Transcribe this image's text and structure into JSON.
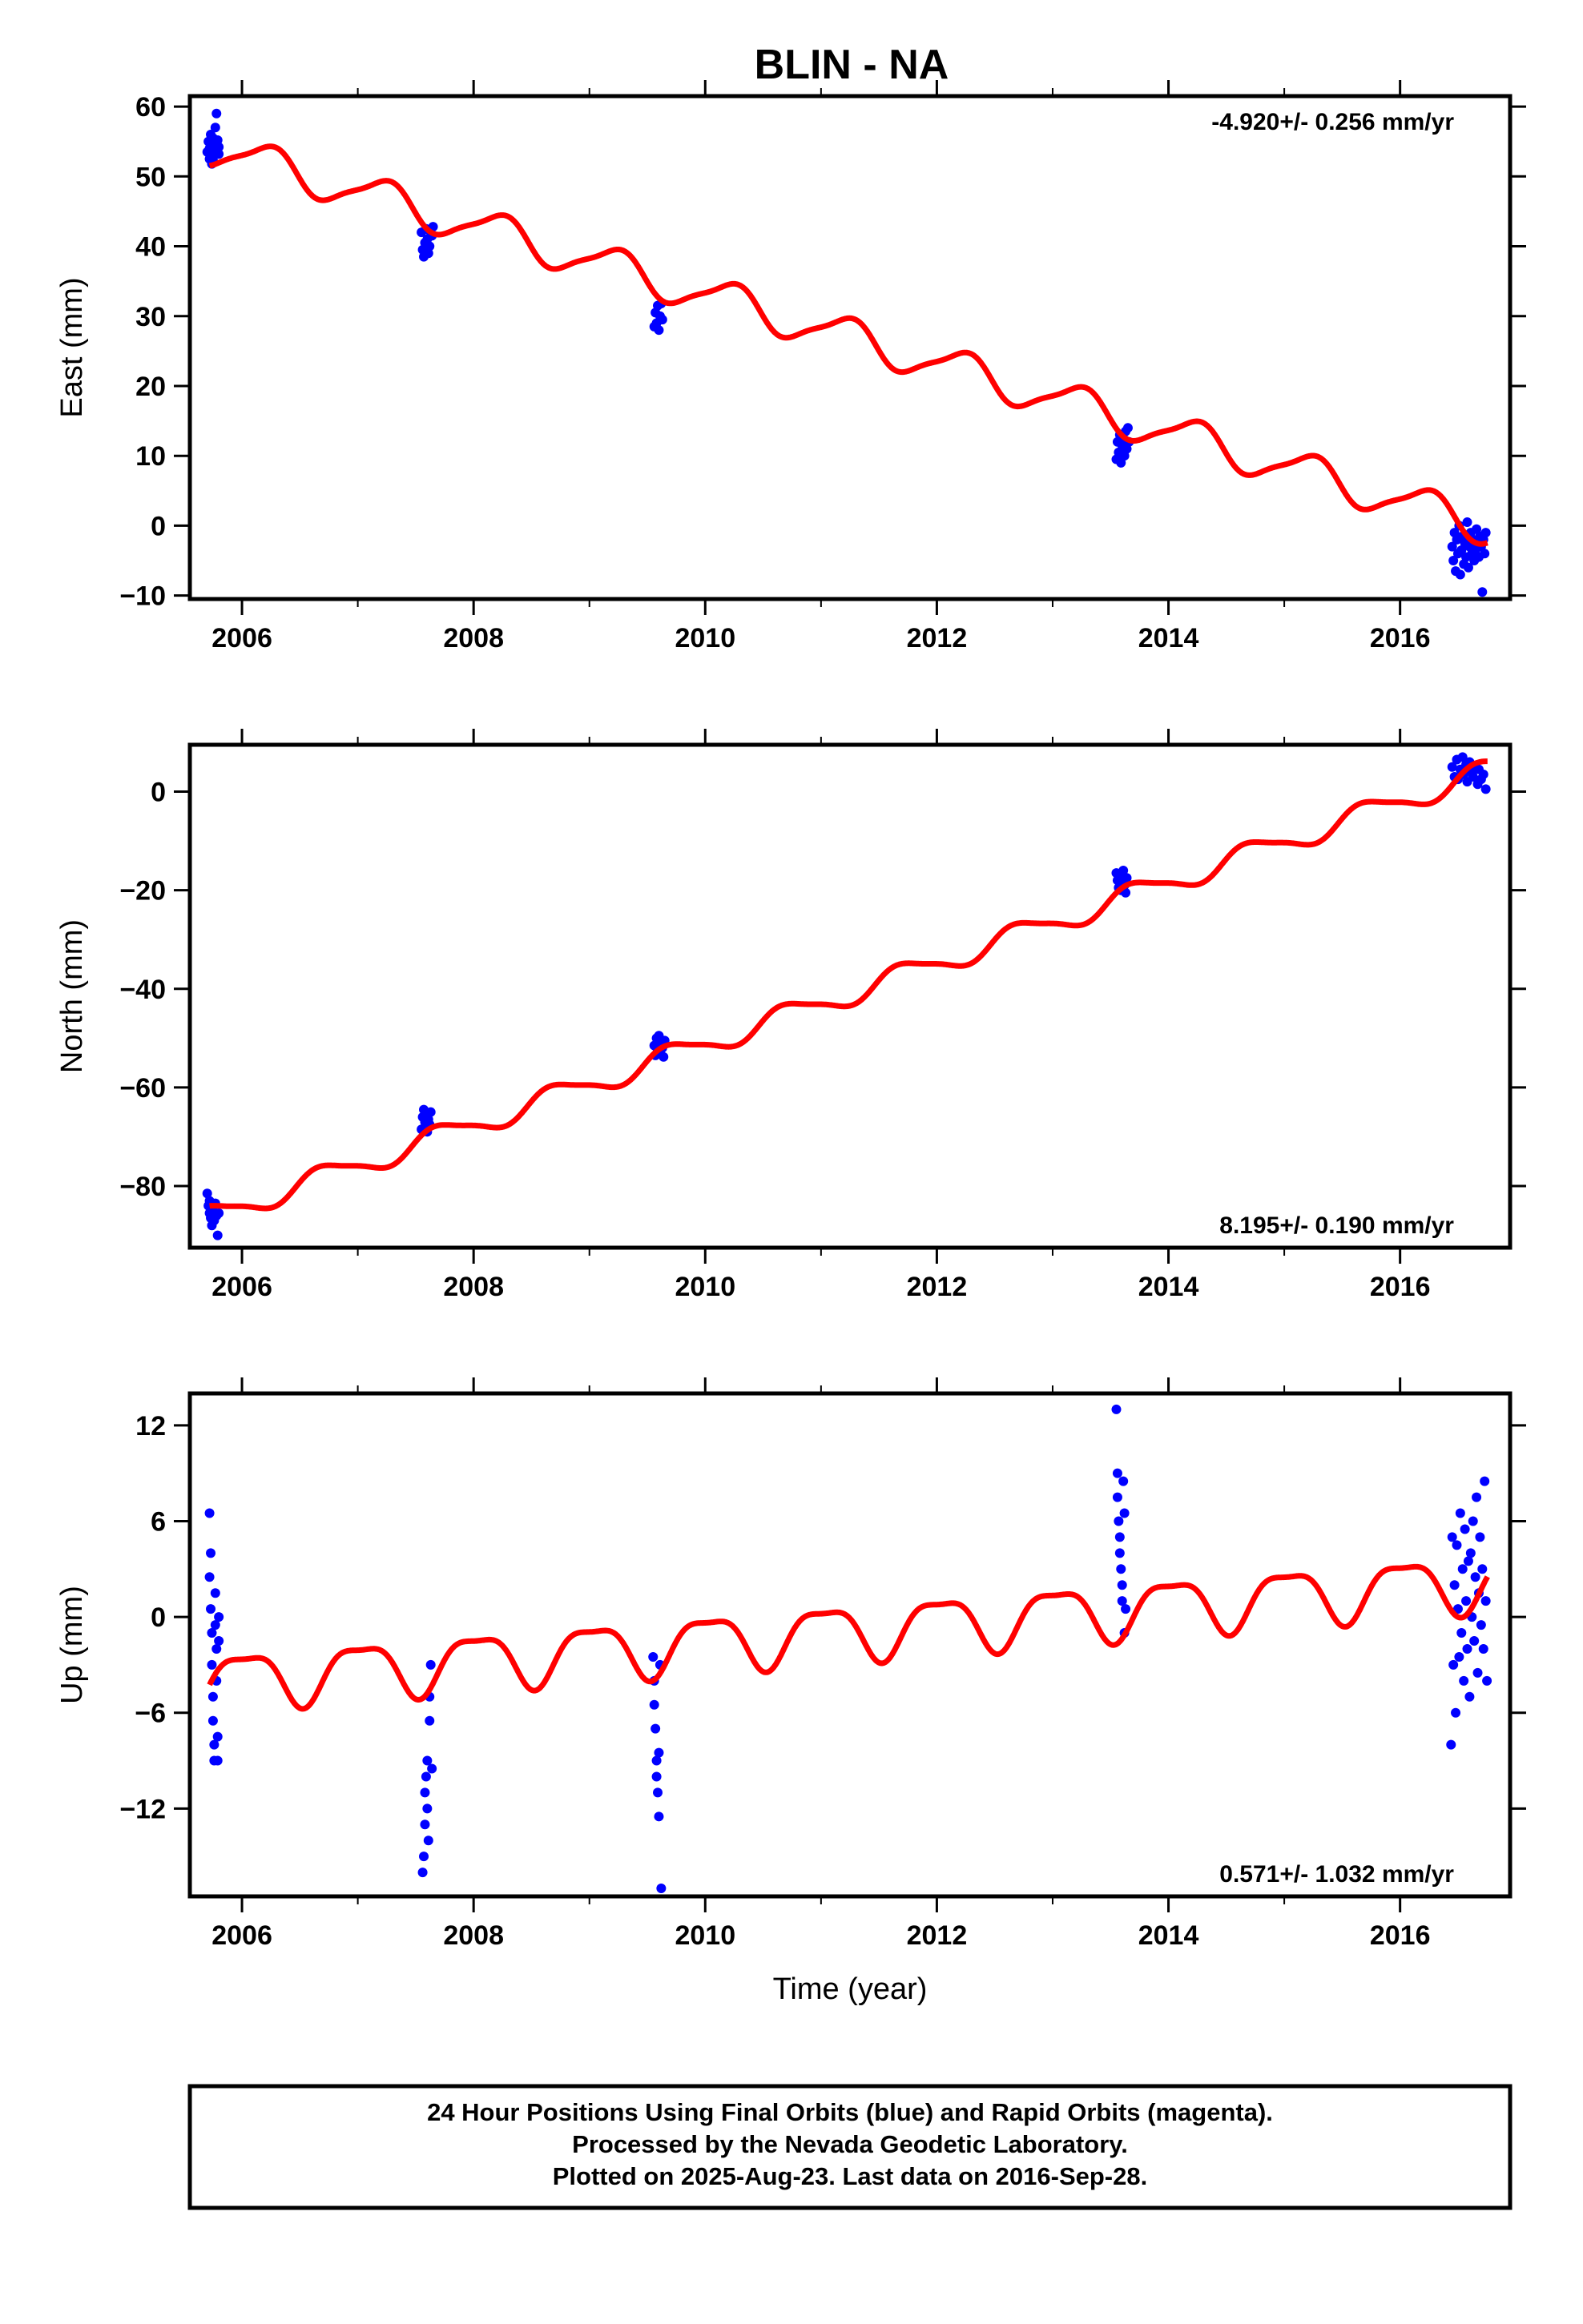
{
  "title": "BLIN - NA",
  "footer": {
    "lines": [
      "24 Hour Positions Using Final Orbits (blue) and Rapid Orbits (magenta).",
      "Processed by the Nevada Geodetic Laboratory.",
      "Plotted on 2025-Aug-23. Last data on 2016-Sep-28."
    ]
  },
  "colors": {
    "data": "#0000ff",
    "model": "#ff0000",
    "axis": "#000000"
  },
  "chart_data": [
    {
      "type": "scatter",
      "ylabel": "East (mm)",
      "xlabel": "",
      "rate": "-4.920+/- 0.256 mm/yr",
      "rate_position": "top-right",
      "xlim": [
        2005.55,
        2016.95
      ],
      "ylim": [
        -10.5,
        61.5
      ],
      "xticks": [
        2006,
        2008,
        2010,
        2012,
        2014,
        2016
      ],
      "yticks": [
        60,
        50,
        40,
        30,
        20,
        10,
        0,
        -10
      ],
      "yticklabels": [
        "60",
        "50",
        "40",
        "30",
        "20",
        "10",
        "0",
        "−10"
      ],
      "model": {
        "trend_start": 54.0,
        "rate": -4.92,
        "annual_amp": 2.6,
        "annual_phase_deg": 10,
        "semiannual_amp": 0.6,
        "semiannual_phase_deg": 200
      },
      "series": [
        {
          "x": [
            2005.7,
            2005.71,
            2005.72,
            2005.72,
            2005.73,
            2005.74,
            2005.74,
            2005.75,
            2005.75,
            2005.76,
            2005.77,
            2005.78,
            2005.78,
            2005.79,
            2005.8,
            2005.8
          ],
          "y": [
            53.5,
            55.0,
            52.5,
            54.0,
            56.0,
            53.0,
            51.8,
            55.5,
            52.3,
            54.8,
            57.0,
            53.8,
            59.0,
            55.2,
            53.2,
            54.2
          ]
        },
        {
          "x": [
            2007.55,
            2007.56,
            2007.57,
            2007.58,
            2007.59,
            2007.6,
            2007.61,
            2007.62,
            2007.63,
            2007.64,
            2007.65
          ],
          "y": [
            42.0,
            39.5,
            38.5,
            40.5,
            42.5,
            41.0,
            39.0,
            40.0,
            42.0,
            41.5,
            42.8
          ]
        },
        {
          "x": [
            2009.56,
            2009.57,
            2009.58,
            2009.59,
            2009.6,
            2009.61,
            2009.62,
            2009.63
          ],
          "y": [
            28.5,
            30.5,
            29.0,
            31.5,
            28.0,
            30.0,
            31.8,
            29.5
          ]
        },
        {
          "x": [
            2013.55,
            2013.56,
            2013.57,
            2013.58,
            2013.59,
            2013.6,
            2013.61,
            2013.62,
            2013.63,
            2013.64,
            2013.65,
            2013.66
          ],
          "y": [
            9.5,
            12.0,
            10.5,
            13.0,
            9.0,
            11.5,
            12.5,
            10.0,
            13.5,
            11.0,
            14.0,
            12.0
          ]
        },
        {
          "x": [
            2016.45,
            2016.46,
            2016.47,
            2016.48,
            2016.49,
            2016.5,
            2016.51,
            2016.52,
            2016.53,
            2016.54,
            2016.55,
            2016.56,
            2016.57,
            2016.58,
            2016.59,
            2016.6,
            2016.61,
            2016.62,
            2016.63,
            2016.64,
            2016.65,
            2016.66,
            2016.67,
            2016.68,
            2016.69,
            2016.7,
            2016.71,
            2016.72,
            2016.73,
            2016.74
          ],
          "y": [
            -3.0,
            -5.0,
            -1.0,
            -6.5,
            -2.0,
            -4.0,
            0.0,
            -7.0,
            -3.5,
            -1.5,
            -5.5,
            -2.5,
            -4.5,
            0.5,
            -6.0,
            -3.0,
            -1.0,
            -4.0,
            -2.0,
            -5.0,
            -3.5,
            -0.5,
            -2.8,
            -4.5,
            -1.5,
            -3.0,
            -9.5,
            -2.0,
            -4.0,
            -1.0
          ]
        }
      ]
    },
    {
      "type": "scatter",
      "ylabel": "North (mm)",
      "xlabel": "",
      "rate": "8.195+/- 0.190 mm/yr",
      "rate_position": "bottom-right",
      "xlim": [
        2005.55,
        2016.95
      ],
      "ylim": [
        -92.5,
        9.5
      ],
      "xticks": [
        2006,
        2008,
        2010,
        2012,
        2014,
        2016
      ],
      "yticks": [
        0,
        -20,
        -40,
        -60,
        -80
      ],
      "yticklabels": [
        "0",
        "−20",
        "−40",
        "−60",
        "−80"
      ],
      "model": {
        "trend_start": -86.0,
        "rate": 8.195,
        "annual_amp": 2.3,
        "annual_phase_deg": 190,
        "semiannual_amp": 0.5,
        "semiannual_phase_deg": 30
      },
      "series": [
        {
          "x": [
            2005.7,
            2005.71,
            2005.72,
            2005.72,
            2005.73,
            2005.74,
            2005.74,
            2005.75,
            2005.76,
            2005.77,
            2005.78,
            2005.79,
            2005.8
          ],
          "y": [
            -81.5,
            -84.0,
            -85.5,
            -83.0,
            -86.5,
            -88.0,
            -84.5,
            -85.0,
            -87.0,
            -83.5,
            -86.0,
            -90.0,
            -85.5
          ]
        },
        {
          "x": [
            2007.55,
            2007.56,
            2007.57,
            2007.58,
            2007.59,
            2007.6,
            2007.61,
            2007.62,
            2007.63
          ],
          "y": [
            -68.5,
            -66.0,
            -64.5,
            -67.0,
            -65.5,
            -69.0,
            -66.5,
            -67.5,
            -65.0
          ]
        },
        {
          "x": [
            2009.56,
            2009.57,
            2009.58,
            2009.59,
            2009.6,
            2009.61,
            2009.62,
            2009.63,
            2009.64,
            2009.65
          ],
          "y": [
            -51.5,
            -53.5,
            -50.0,
            -52.5,
            -49.5,
            -53.0,
            -51.0,
            -52.0,
            -53.8,
            -50.5
          ]
        },
        {
          "x": [
            2013.55,
            2013.56,
            2013.57,
            2013.58,
            2013.59,
            2013.6,
            2013.61,
            2013.62,
            2013.63,
            2013.64
          ],
          "y": [
            -16.5,
            -18.0,
            -19.5,
            -17.0,
            -20.0,
            -18.5,
            -16.0,
            -19.0,
            -20.5,
            -17.5
          ]
        },
        {
          "x": [
            2016.45,
            2016.47,
            2016.49,
            2016.5,
            2016.52,
            2016.54,
            2016.55,
            2016.57,
            2016.58,
            2016.6,
            2016.62,
            2016.63,
            2016.65,
            2016.67,
            2016.68,
            2016.7,
            2016.72,
            2016.74
          ],
          "y": [
            5.0,
            3.0,
            6.5,
            2.5,
            4.5,
            7.0,
            3.5,
            5.5,
            2.0,
            6.0,
            4.0,
            3.0,
            5.0,
            1.5,
            4.5,
            2.5,
            3.5,
            0.5
          ]
        }
      ]
    },
    {
      "type": "scatter",
      "ylabel": "Up (mm)",
      "xlabel": "Time (year)",
      "rate": "0.571+/- 1.032 mm/yr",
      "rate_position": "bottom-right",
      "xlim": [
        2005.55,
        2016.95
      ],
      "ylim": [
        -17.5,
        14.0
      ],
      "xticks": [
        2006,
        2008,
        2010,
        2012,
        2014,
        2016
      ],
      "yticks": [
        12,
        6,
        0,
        -6,
        -12
      ],
      "yticklabels": [
        "12",
        "6",
        "0",
        "−6",
        "−12"
      ],
      "model": {
        "trend_start": -4.0,
        "rate": 0.571,
        "annual_amp": 1.7,
        "annual_phase_deg": 80,
        "semiannual_amp": 0.5,
        "semiannual_phase_deg": 250
      },
      "series": [
        {
          "x": [
            2005.72,
            2005.72,
            2005.73,
            2005.73,
            2005.74,
            2005.74,
            2005.75,
            2005.75,
            2005.76,
            2005.76,
            2005.77,
            2005.77,
            2005.78,
            2005.78,
            2005.79,
            2005.79,
            2005.8,
            2005.8
          ],
          "y": [
            6.5,
            2.5,
            4.0,
            0.5,
            -1.0,
            -3.0,
            -5.0,
            -6.5,
            -8.0,
            -9.0,
            1.5,
            -0.5,
            -2.0,
            -4.0,
            -7.5,
            -9.0,
            -1.5,
            0.0
          ]
        },
        {
          "x": [
            2007.56,
            2007.57,
            2007.58,
            2007.58,
            2007.59,
            2007.6,
            2007.6,
            2007.61,
            2007.62,
            2007.62,
            2007.63,
            2007.64
          ],
          "y": [
            -16.0,
            -15.0,
            -13.0,
            -11.0,
            -10.0,
            -9.0,
            -12.0,
            -14.0,
            -6.5,
            -5.0,
            -3.0,
            -9.5
          ]
        },
        {
          "x": [
            2009.55,
            2009.56,
            2009.56,
            2009.57,
            2009.58,
            2009.58,
            2009.59,
            2009.6,
            2009.6,
            2009.61,
            2009.62
          ],
          "y": [
            -2.5,
            -4.0,
            -5.5,
            -7.0,
            -9.0,
            -10.0,
            -11.0,
            -12.5,
            -8.5,
            -3.0,
            -17.0
          ]
        },
        {
          "x": [
            2013.55,
            2013.56,
            2013.56,
            2013.57,
            2013.58,
            2013.58,
            2013.59,
            2013.6,
            2013.6,
            2013.61,
            2013.62,
            2013.62,
            2013.63
          ],
          "y": [
            13.0,
            9.0,
            7.5,
            6.0,
            5.0,
            4.0,
            3.0,
            2.0,
            1.0,
            8.5,
            6.5,
            -1.0,
            0.5
          ]
        },
        {
          "x": [
            2016.44,
            2016.45,
            2016.46,
            2016.47,
            2016.48,
            2016.49,
            2016.5,
            2016.51,
            2016.52,
            2016.53,
            2016.54,
            2016.55,
            2016.56,
            2016.57,
            2016.58,
            2016.59,
            2016.6,
            2016.61,
            2016.62,
            2016.63,
            2016.64,
            2016.65,
            2016.66,
            2016.67,
            2016.68,
            2016.69,
            2016.7,
            2016.71,
            2016.72,
            2016.73,
            2016.74,
            2016.75
          ],
          "y": [
            -8.0,
            5.0,
            -3.0,
            2.0,
            -6.0,
            4.5,
            0.5,
            -2.5,
            6.5,
            -1.0,
            3.0,
            -4.0,
            5.5,
            1.0,
            -2.0,
            3.5,
            -5.0,
            4.0,
            0.0,
            6.0,
            -1.5,
            2.5,
            7.5,
            -3.5,
            1.5,
            5.0,
            -0.5,
            3.0,
            -2.0,
            8.5,
            1.0,
            -4.0
          ]
        }
      ]
    }
  ]
}
